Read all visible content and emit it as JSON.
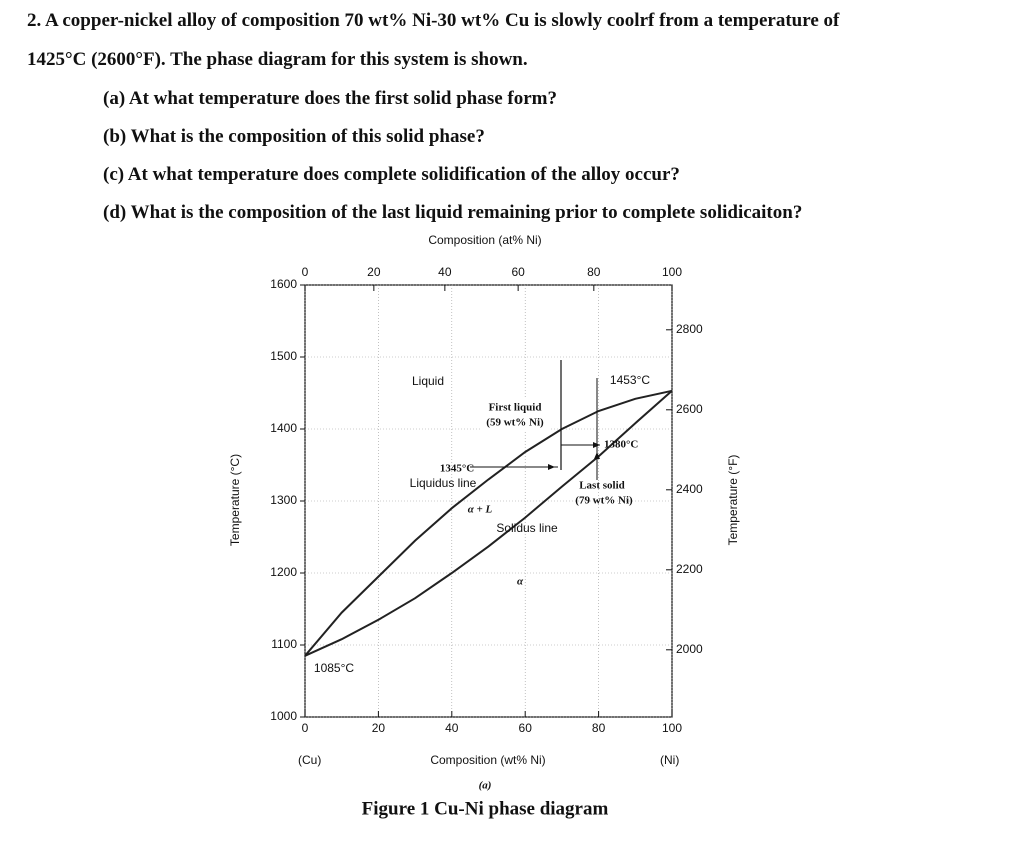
{
  "question": {
    "lines": [
      "2. A copper-nickel alloy of composition 70 wt% Ni-30 wt% Cu is slowly coolrf from a temperature of",
      "1425°C (2600°F). The phase diagram for this system is shown."
    ],
    "parts": [
      "(a) At what temperature does the first solid phase form?",
      "(b) What is the composition of this solid phase?",
      "(c) At what temperature does complete solidification of the alloy occur?",
      "(d) What is the composition of the last liquid remaining prior to complete solidicaiton?"
    ]
  },
  "figure": {
    "top_axis_title": "Composition (at% Ni)",
    "bottom_axis_title": "Composition (wt% Ni)",
    "left_axis_title": "Temperature (°C)",
    "right_axis_title": "Temperature (°F)",
    "left_ticks": [
      1000,
      1100,
      1200,
      1300,
      1400,
      1500,
      1600
    ],
    "right_ticks": [
      2000,
      2200,
      2400,
      2600,
      2800
    ],
    "top_ticks": [
      0,
      20,
      40,
      60,
      80,
      100
    ],
    "bottom_ticks": [
      0,
      20,
      40,
      60,
      80,
      100
    ],
    "left_end_label": "(Cu)",
    "right_end_label": "(Ni)",
    "annotations": {
      "liquid": "Liquid",
      "ni_melt": "1453°C",
      "first_liquid": "First liquid",
      "first_liquid_comp": "(59 wt% Ni)",
      "t1380": "1380°C",
      "t1345": "1345°C",
      "liquidus": "Liquidus line",
      "two_phase": "α + L",
      "last_solid": "Last solid",
      "last_solid_comp": "(79 wt% Ni)",
      "solidus": "Solidus line",
      "alpha": "α",
      "cu_melt": "1085°C"
    },
    "sublabel": "(a)",
    "caption": "Figure 1 Cu-Ni phase diagram"
  }
}
